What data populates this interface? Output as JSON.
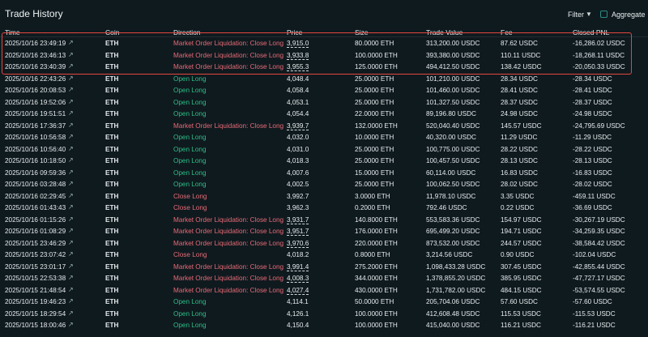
{
  "header": {
    "title": "Trade History",
    "filter_label": "Filter",
    "aggregate_label": "Aggregate"
  },
  "columns": [
    "Time",
    "Coin",
    "Direction",
    "Price",
    "Size",
    "Trade Value",
    "Fee",
    "Closed PNL"
  ],
  "rows": [
    {
      "time": "2025/10/16 23:49:19",
      "coin": "ETH",
      "direction": "Market Order Liquidation: Close Long",
      "type": "close",
      "price": "3,915.0",
      "dashed": true,
      "size": "80.0000 ETH",
      "value": "313,200.00 USDC",
      "fee": "87.62 USDC",
      "pnl": "-16,286.02 USDC"
    },
    {
      "time": "2025/10/16 23:46:13",
      "coin": "ETH",
      "direction": "Market Order Liquidation: Close Long",
      "type": "close",
      "price": "3,933.8",
      "dashed": true,
      "size": "100.0000 ETH",
      "value": "393,380.00 USDC",
      "fee": "110.11 USDC",
      "pnl": "-18,268.11 USDC"
    },
    {
      "time": "2025/10/16 23:40:39",
      "coin": "ETH",
      "direction": "Market Order Liquidation: Close Long",
      "type": "close",
      "price": "3,955.3",
      "dashed": true,
      "size": "125.0000 ETH",
      "value": "494,412.50 USDC",
      "fee": "138.42 USDC",
      "pnl": "-20,050.33 USDC"
    },
    {
      "time": "2025/10/16 22:43:26",
      "coin": "ETH",
      "direction": "Open Long",
      "type": "open",
      "price": "4,048.4",
      "dashed": false,
      "size": "25.0000 ETH",
      "value": "101,210.00 USDC",
      "fee": "28.34 USDC",
      "pnl": "-28.34 USDC"
    },
    {
      "time": "2025/10/16 20:08:53",
      "coin": "ETH",
      "direction": "Open Long",
      "type": "open",
      "price": "4,058.4",
      "dashed": false,
      "size": "25.0000 ETH",
      "value": "101,460.00 USDC",
      "fee": "28.41 USDC",
      "pnl": "-28.41 USDC"
    },
    {
      "time": "2025/10/16 19:52:06",
      "coin": "ETH",
      "direction": "Open Long",
      "type": "open",
      "price": "4,053.1",
      "dashed": false,
      "size": "25.0000 ETH",
      "value": "101,327.50 USDC",
      "fee": "28.37 USDC",
      "pnl": "-28.37 USDC"
    },
    {
      "time": "2025/10/16 19:51:51",
      "coin": "ETH",
      "direction": "Open Long",
      "type": "open",
      "price": "4,054.4",
      "dashed": false,
      "size": "22.0000 ETH",
      "value": "89,196.80 USDC",
      "fee": "24.98 USDC",
      "pnl": "-24.98 USDC"
    },
    {
      "time": "2025/10/16 17:36:37",
      "coin": "ETH",
      "direction": "Market Order Liquidation: Close Long",
      "type": "close",
      "price": "3,939.7",
      "dashed": true,
      "size": "132.0000 ETH",
      "value": "520,040.40 USDC",
      "fee": "145.57 USDC",
      "pnl": "-24,795.69 USDC"
    },
    {
      "time": "2025/10/16 10:56:58",
      "coin": "ETH",
      "direction": "Open Long",
      "type": "open",
      "price": "4,032.0",
      "dashed": false,
      "size": "10.0000 ETH",
      "value": "40,320.00 USDC",
      "fee": "11.29 USDC",
      "pnl": "-11.29 USDC"
    },
    {
      "time": "2025/10/16 10:56:40",
      "coin": "ETH",
      "direction": "Open Long",
      "type": "open",
      "price": "4,031.0",
      "dashed": false,
      "size": "25.0000 ETH",
      "value": "100,775.00 USDC",
      "fee": "28.22 USDC",
      "pnl": "-28.22 USDC"
    },
    {
      "time": "2025/10/16 10:18:50",
      "coin": "ETH",
      "direction": "Open Long",
      "type": "open",
      "price": "4,018.3",
      "dashed": false,
      "size": "25.0000 ETH",
      "value": "100,457.50 USDC",
      "fee": "28.13 USDC",
      "pnl": "-28.13 USDC"
    },
    {
      "time": "2025/10/16 09:59:36",
      "coin": "ETH",
      "direction": "Open Long",
      "type": "open",
      "price": "4,007.6",
      "dashed": false,
      "size": "15.0000 ETH",
      "value": "60,114.00 USDC",
      "fee": "16.83 USDC",
      "pnl": "-16.83 USDC"
    },
    {
      "time": "2025/10/16 03:28:48",
      "coin": "ETH",
      "direction": "Open Long",
      "type": "open",
      "price": "4,002.5",
      "dashed": false,
      "size": "25.0000 ETH",
      "value": "100,062.50 USDC",
      "fee": "28.02 USDC",
      "pnl": "-28.02 USDC"
    },
    {
      "time": "2025/10/16 02:29:45",
      "coin": "ETH",
      "direction": "Close Long",
      "type": "close",
      "price": "3,992.7",
      "dashed": false,
      "size": "3.0000 ETH",
      "value": "11,978.10 USDC",
      "fee": "3.35 USDC",
      "pnl": "-459.11 USDC"
    },
    {
      "time": "2025/10/16 01:43:43",
      "coin": "ETH",
      "direction": "Close Long",
      "type": "close",
      "price": "3,962.3",
      "dashed": false,
      "size": "0.2000 ETH",
      "value": "792.46 USDC",
      "fee": "0.22 USDC",
      "pnl": "-36.69 USDC"
    },
    {
      "time": "2025/10/16 01:15:26",
      "coin": "ETH",
      "direction": "Market Order Liquidation: Close Long",
      "type": "close",
      "price": "3,931.7",
      "dashed": true,
      "size": "140.8000 ETH",
      "value": "553,583.36 USDC",
      "fee": "154.97 USDC",
      "pnl": "-30,267.19 USDC"
    },
    {
      "time": "2025/10/16 01:08:29",
      "coin": "ETH",
      "direction": "Market Order Liquidation: Close Long",
      "type": "close",
      "price": "3,951.7",
      "dashed": true,
      "size": "176.0000 ETH",
      "value": "695,499.20 USDC",
      "fee": "194.71 USDC",
      "pnl": "-34,259.35 USDC"
    },
    {
      "time": "2025/10/15 23:46:29",
      "coin": "ETH",
      "direction": "Market Order Liquidation: Close Long",
      "type": "close",
      "price": "3,970.6",
      "dashed": true,
      "size": "220.0000 ETH",
      "value": "873,532.00 USDC",
      "fee": "244.57 USDC",
      "pnl": "-38,584.42 USDC"
    },
    {
      "time": "2025/10/15 23:07:42",
      "coin": "ETH",
      "direction": "Close Long",
      "type": "close",
      "price": "4,018.2",
      "dashed": false,
      "size": "0.8000 ETH",
      "value": "3,214.56 USDC",
      "fee": "0.90 USDC",
      "pnl": "-102.04 USDC"
    },
    {
      "time": "2025/10/15 23:01:17",
      "coin": "ETH",
      "direction": "Market Order Liquidation: Close Long",
      "type": "close",
      "price": "3,991.4",
      "dashed": true,
      "size": "275.2000 ETH",
      "value": "1,098,433.28 USDC",
      "fee": "307.45 USDC",
      "pnl": "-42,855.44 USDC"
    },
    {
      "time": "2025/10/15 22:53:38",
      "coin": "ETH",
      "direction": "Market Order Liquidation: Close Long",
      "type": "close",
      "price": "4,008.3",
      "dashed": true,
      "size": "344.0000 ETH",
      "value": "1,378,855.20 USDC",
      "fee": "385.95 USDC",
      "pnl": "-47,727.17 USDC"
    },
    {
      "time": "2025/10/15 21:48:54",
      "coin": "ETH",
      "direction": "Market Order Liquidation: Close Long",
      "type": "close",
      "price": "4,027.4",
      "dashed": true,
      "size": "430.0000 ETH",
      "value": "1,731,782.00 USDC",
      "fee": "484.15 USDC",
      "pnl": "-53,574.55 USDC"
    },
    {
      "time": "2025/10/15 19:46:23",
      "coin": "ETH",
      "direction": "Open Long",
      "type": "open",
      "price": "4,114.1",
      "dashed": false,
      "size": "50.0000 ETH",
      "value": "205,704.06 USDC",
      "fee": "57.60 USDC",
      "pnl": "-57.60 USDC"
    },
    {
      "time": "2025/10/15 18:29:54",
      "coin": "ETH",
      "direction": "Open Long",
      "type": "open",
      "price": "4,126.1",
      "dashed": false,
      "size": "100.0000 ETH",
      "value": "412,608.48 USDC",
      "fee": "115.53 USDC",
      "pnl": "-115.53 USDC"
    },
    {
      "time": "2025/10/15 18:00:46",
      "coin": "ETH",
      "direction": "Open Long",
      "type": "open",
      "price": "4,150.4",
      "dashed": false,
      "size": "100.0000 ETH",
      "value": "415,040.00 USDC",
      "fee": "116.21 USDC",
      "pnl": "-116.21 USDC"
    }
  ]
}
